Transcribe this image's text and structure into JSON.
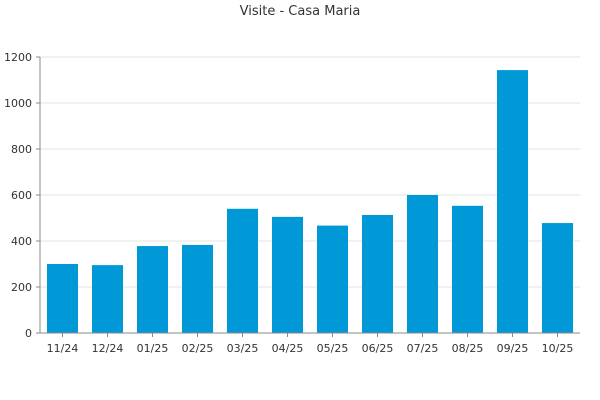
{
  "chart_data": {
    "type": "bar",
    "title": "Visite - Casa Maria",
    "xlabel": "",
    "ylabel": "",
    "categories": [
      "11/24",
      "12/24",
      "01/25",
      "02/25",
      "03/25",
      "04/25",
      "05/25",
      "06/25",
      "07/25",
      "08/25",
      "09/25",
      "10/25"
    ],
    "values": [
      300,
      295,
      378,
      383,
      540,
      505,
      467,
      513,
      600,
      553,
      1143,
      478
    ],
    "ylim": [
      0,
      1200
    ],
    "yticks": [
      0,
      200,
      400,
      600,
      800,
      1000,
      1200
    ],
    "grid": true,
    "legend": "none",
    "bar_color": "#0098d6"
  }
}
